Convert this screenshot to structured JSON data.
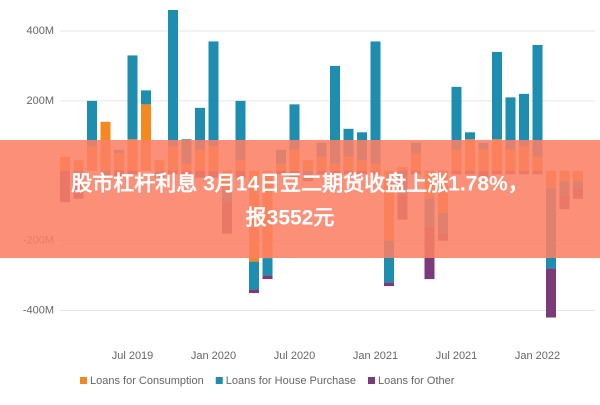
{
  "chart_data": {
    "type": "stacked_bar",
    "categories": [
      null,
      null,
      null,
      null,
      null,
      "Jul 2019",
      null,
      null,
      null,
      null,
      null,
      "Jan 2020",
      null,
      null,
      null,
      null,
      null,
      "Jul 2020",
      null,
      null,
      null,
      null,
      null,
      "Jan 2021",
      null,
      null,
      null,
      null,
      null,
      "Jul 2021",
      null,
      null,
      null,
      null,
      null,
      "Jan 2022",
      null,
      null,
      null
    ],
    "series": [
      {
        "name": "Loans for Consumption",
        "color": "#f5891f",
        "values": [
          40,
          30,
          70,
          140,
          50,
          90,
          190,
          30,
          70,
          20,
          60,
          70,
          -50,
          30,
          -260,
          -250,
          20,
          60,
          30,
          40,
          20,
          40,
          30,
          20,
          -200,
          10,
          50,
          -80,
          -120,
          60,
          90,
          60,
          90,
          60,
          70,
          40,
          -50,
          -30,
          -30
        ]
      },
      {
        "name": "Loans for House Purchase",
        "color": "#1d8db0",
        "values": [
          0,
          -10,
          130,
          -20,
          10,
          240,
          40,
          -20,
          390,
          70,
          120,
          300,
          -40,
          170,
          -80,
          -50,
          40,
          130,
          -20,
          40,
          280,
          80,
          80,
          350,
          -120,
          -70,
          30,
          -80,
          -60,
          180,
          20,
          20,
          250,
          150,
          150,
          320,
          -230,
          -40,
          -20
        ]
      },
      {
        "name": "Loans for Other",
        "color": "#7b3a78",
        "values": [
          -90,
          -70,
          0,
          0,
          -20,
          -10,
          0,
          0,
          -10,
          -20,
          -20,
          -20,
          -90,
          -20,
          -10,
          -10,
          -10,
          -20,
          -10,
          -10,
          -10,
          -10,
          -10,
          -10,
          -10,
          -70,
          -10,
          -150,
          -20,
          -10,
          -10,
          -20,
          -10,
          -10,
          -10,
          -10,
          -140,
          -40,
          -30
        ]
      }
    ],
    "ylim": [
      -470,
      480
    ],
    "yticks": [
      {
        "value": -400,
        "label": "-400M"
      },
      {
        "value": -200,
        "label": "-200M"
      },
      {
        "value": 200,
        "label": "200M"
      },
      {
        "value": 400,
        "label": "400M"
      }
    ],
    "grid": true,
    "legend": "bottom",
    "annotation": [
      "股市杠杆利息 3月14日豆二期货收盘上涨1.78%，",
      "报3552元"
    ]
  }
}
